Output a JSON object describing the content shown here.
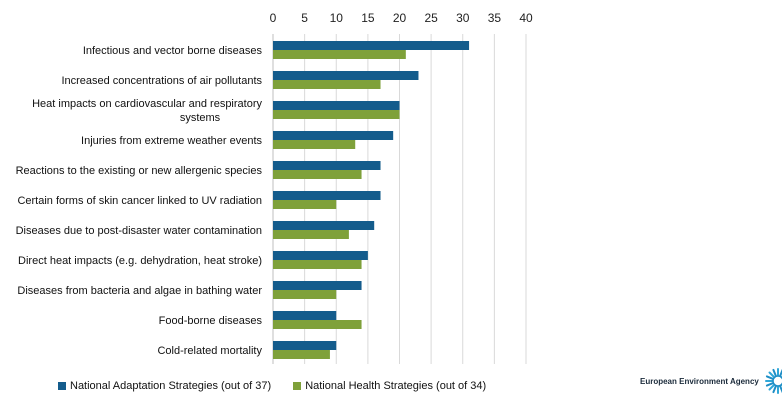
{
  "chart_data": {
    "type": "bar",
    "orientation": "horizontal",
    "categories": [
      "Infectious and vector borne diseases",
      "Increased concentrations of air pollutants",
      "Heat impacts on cardiovascular and respiratory systems",
      "Injuries from extreme weather events",
      "Reactions to the existing or new allergenic species",
      "Certain forms of skin cancer linked to UV radiation",
      "Diseases due to post-disaster water contamination",
      "Direct heat impacts (e.g. dehydration, heat stroke)",
      "Diseases from bacteria and algae in bathing water",
      "Food-borne diseases",
      "Cold-related mortality"
    ],
    "category_lines": [
      [
        "Infectious and vector borne diseases"
      ],
      [
        "Increased concentrations of air pollutants"
      ],
      [
        "Heat impacts on cardiovascular and respiratory",
        "systems"
      ],
      [
        "Injuries from extreme weather events"
      ],
      [
        "Reactions to the existing or new allergenic species"
      ],
      [
        "Certain forms of skin cancer linked to UV radiation"
      ],
      [
        "Diseases due to post-disaster water contamination"
      ],
      [
        "Direct heat impacts (e.g. dehydration, heat stroke)"
      ],
      [
        "Diseases from bacteria and algae in bathing water"
      ],
      [
        "Food-borne diseases"
      ],
      [
        "Cold-related mortality"
      ]
    ],
    "series": [
      {
        "name": "National Adaptation Strategies (out of 37)",
        "color": "#145c8c",
        "values": [
          31,
          23,
          20,
          19,
          17,
          17,
          16,
          15,
          14,
          10,
          10
        ]
      },
      {
        "name": "National Health Strategies (out of 34)",
        "color": "#7fa13a",
        "values": [
          21,
          17,
          20,
          13,
          14,
          10,
          12,
          14,
          10,
          14,
          9
        ]
      }
    ],
    "xlim": [
      0,
      40
    ],
    "xticks": [
      0,
      5,
      10,
      15,
      20,
      25,
      30,
      35,
      40
    ],
    "axis_position": "top",
    "grid": true,
    "legend_position": "bottom-left"
  },
  "branding": {
    "logo_text": "European Environment Agency",
    "logo_icon": "eea-sun-icon"
  }
}
